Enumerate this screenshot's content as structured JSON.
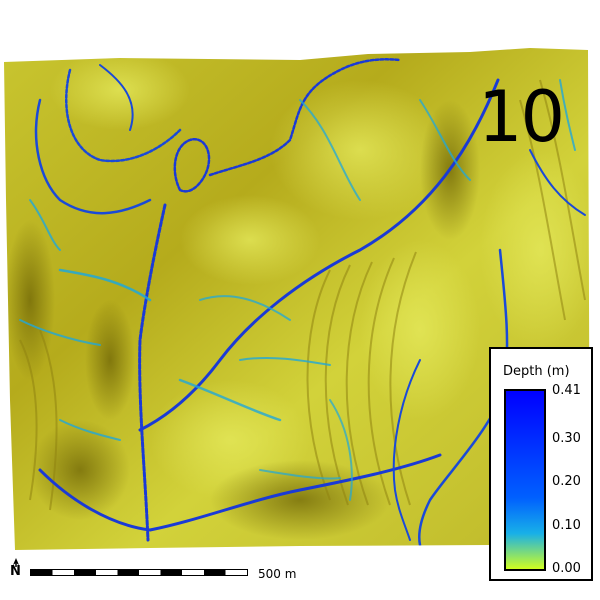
{
  "map": {
    "frame_label": "10",
    "colors": {
      "terrain_light": "#d6d63a",
      "terrain_mid": "#b9ad1e",
      "terrain_dark": "#7f7208",
      "channel_deep": "#1a3ad6",
      "channel_shallow": "#20a8d8",
      "background": "#ffffff"
    }
  },
  "legend": {
    "title": "Depth (m)",
    "ticks": [
      "0.41",
      "0.30",
      "0.20",
      "0.10",
      "0.00"
    ],
    "tick_values": [
      0.41,
      0.3,
      0.2,
      0.1,
      0.0
    ],
    "range": [
      0.0,
      0.41
    ],
    "colors": [
      "#0000ff",
      "#0060ff",
      "#18b0e8",
      "#d0ff20"
    ]
  },
  "scale": {
    "label": "500 m"
  },
  "north_arrow": {
    "letter": "N",
    "icon": "north-arrow-icon"
  }
}
